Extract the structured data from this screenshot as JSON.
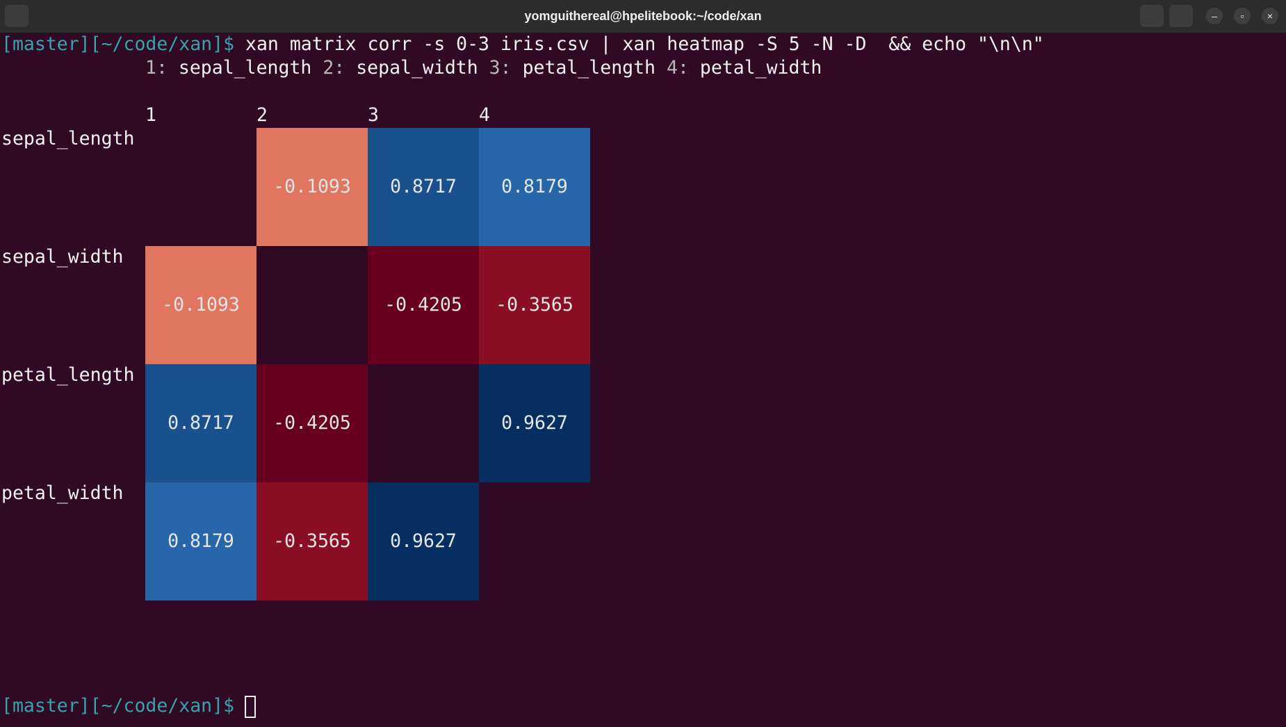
{
  "window": {
    "title": "yomguithereal@hpelitebook:~/code/xan"
  },
  "terminal": {
    "prompt": "[master][~/code/xan]$",
    "command": "xan matrix corr -s 0-3 iris.csv | xan heatmap -S 5 -N -D  && echo \"\\n\\n\"",
    "legend": [
      {
        "number": "1:",
        "name": "sepal_length"
      },
      {
        "number": "2:",
        "name": "sepal_width"
      },
      {
        "number": "3:",
        "name": "petal_length"
      },
      {
        "number": "4:",
        "name": "petal_width"
      }
    ],
    "heatmap": {
      "columns": [
        "1",
        "2",
        "3",
        "4"
      ],
      "rows": [
        "sepal_length",
        "sepal_width",
        "petal_length",
        "petal_width"
      ],
      "values": [
        [
          null,
          -0.1093,
          0.8717,
          0.8179
        ],
        [
          -0.1093,
          null,
          -0.4205,
          -0.3565
        ],
        [
          0.8717,
          -0.4205,
          null,
          0.9627
        ],
        [
          0.8179,
          -0.3565,
          0.9627,
          null
        ]
      ],
      "colors": [
        [
          null,
          "#e07560",
          "#19518f",
          "#2767a9"
        ],
        [
          null,
          null,
          "#67001f",
          "#8a0f25"
        ],
        [
          null,
          null,
          null,
          "#062f61"
        ],
        [
          null,
          null,
          null,
          null
        ]
      ]
    },
    "final_prompt": "[master][~/code/xan]$"
  }
}
